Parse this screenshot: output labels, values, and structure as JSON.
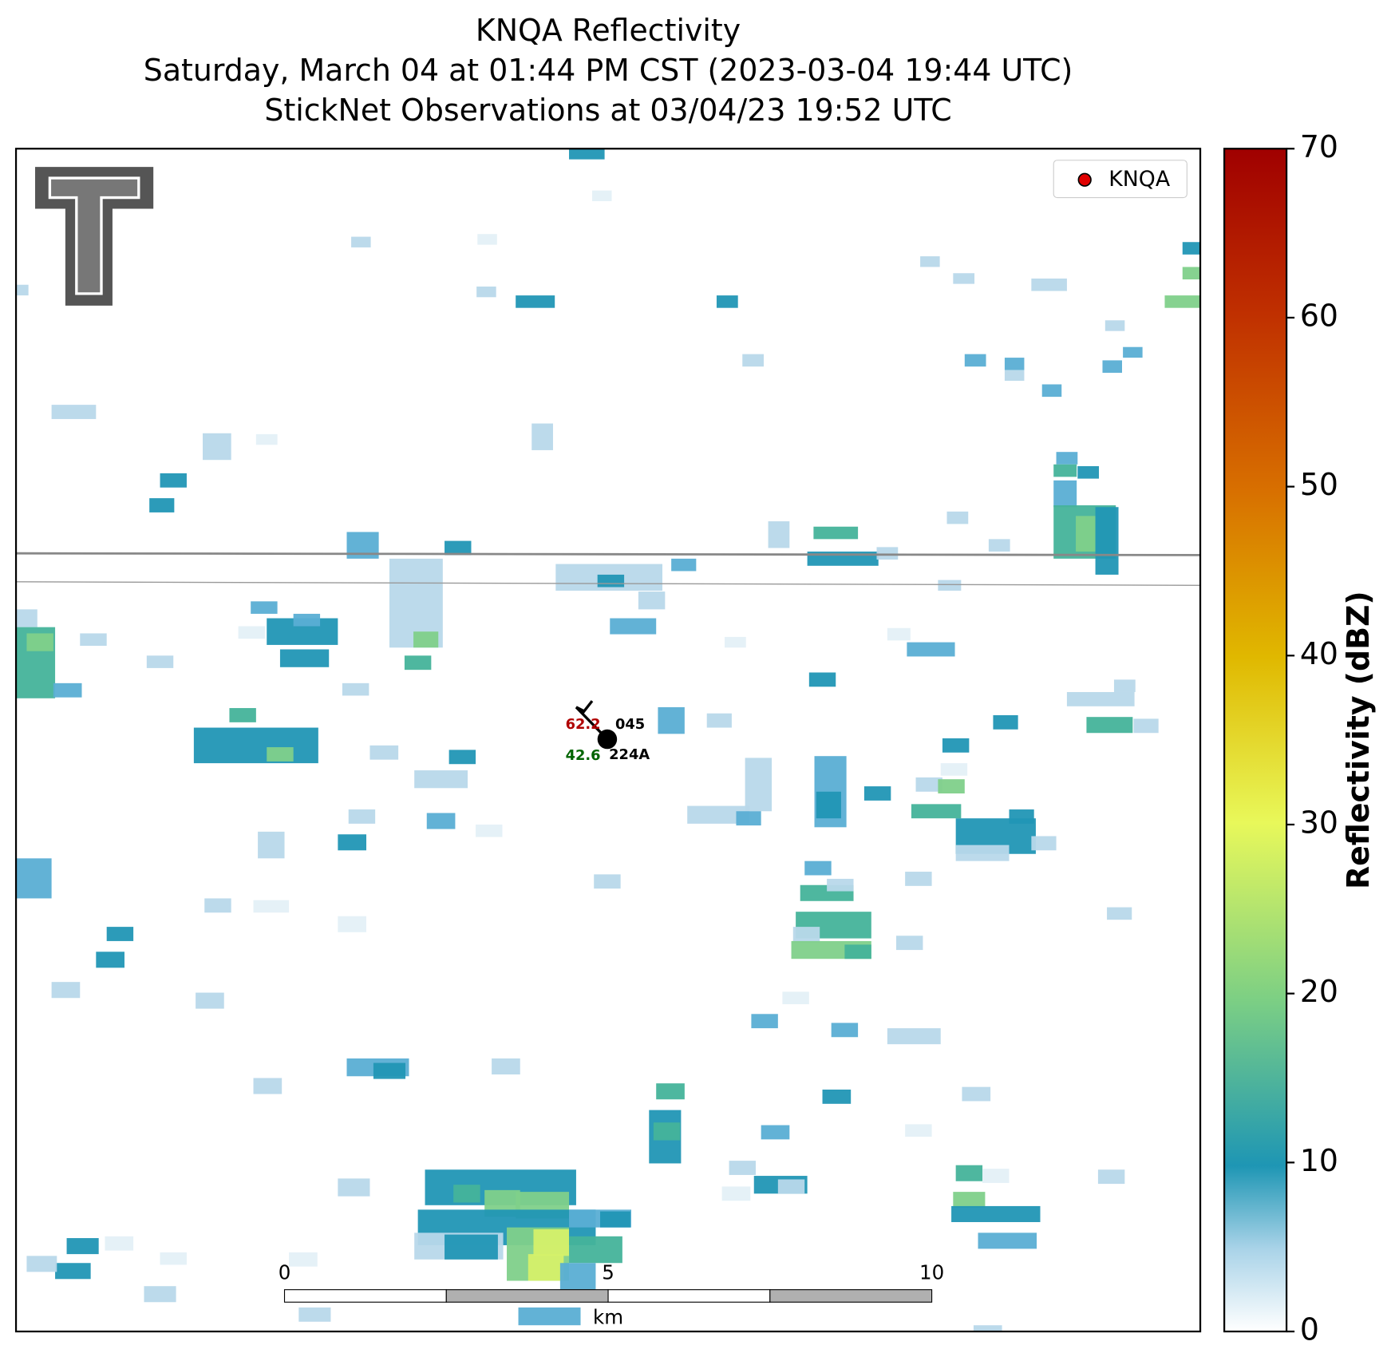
{
  "title": [
    "KNQA Reflectivity",
    "Saturday, March 04 at 01:44 PM CST (2023-03-04 19:44 UTC)",
    "StickNet Observations at 03/04/23 19:52 UTC"
  ],
  "legend": {
    "label": "KNQA",
    "color": "#e00000"
  },
  "station": {
    "temperature": "62.2",
    "pressure": "045",
    "dewpoint": "42.6",
    "id": "224A"
  },
  "scale_bar": {
    "ticks": [
      "0",
      "5",
      "10"
    ],
    "unit": "km"
  },
  "colorbar": {
    "label": "Reflectivity (dBZ)",
    "lim": [
      0,
      70
    ],
    "ticks": [
      0,
      10,
      20,
      30,
      40,
      50,
      60,
      70
    ]
  }
}
